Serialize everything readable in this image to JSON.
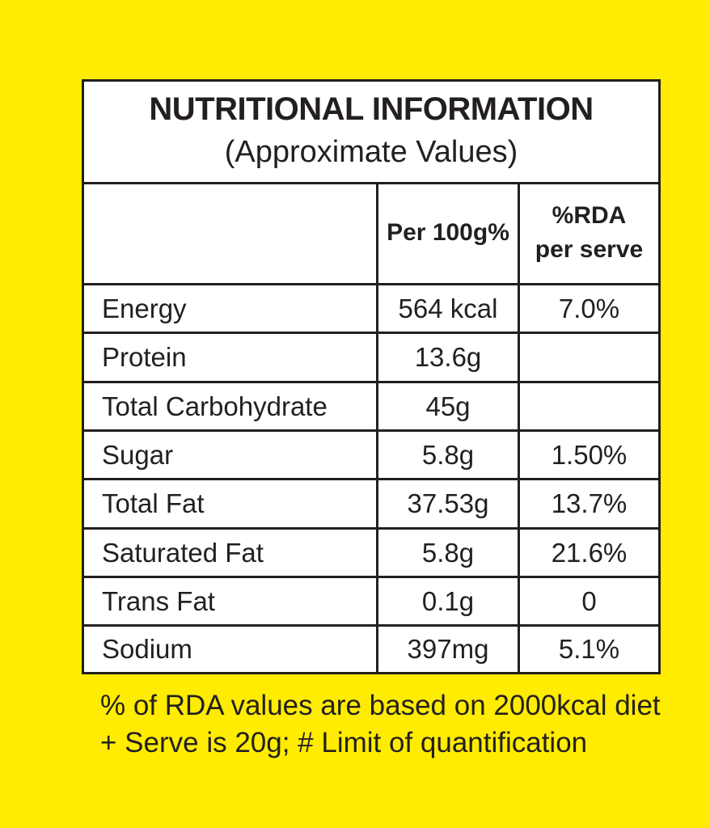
{
  "title": "NUTRITIONAL INFORMATION",
  "subtitle": "(Approximate Values)",
  "columns": {
    "blank": "",
    "per100g": "Per 100g%",
    "rda_line1": "%RDA",
    "rda_line2": "per serve"
  },
  "rows": [
    {
      "nutrient": "Energy",
      "per100g": "564 kcal",
      "rda": "7.0%"
    },
    {
      "nutrient": "Protein",
      "per100g": "13.6g",
      "rda": ""
    },
    {
      "nutrient": "Total Carbohydrate",
      "per100g": "45g",
      "rda": ""
    },
    {
      "nutrient": "Sugar",
      "per100g": "5.8g",
      "rda": "1.50%"
    },
    {
      "nutrient": "Total Fat",
      "per100g": "37.53g",
      "rda": "13.7%"
    },
    {
      "nutrient": "Saturated Fat",
      "per100g": "5.8g",
      "rda": "21.6%"
    },
    {
      "nutrient": "Trans Fat",
      "per100g": "0.1g",
      "rda": "0"
    },
    {
      "nutrient": "Sodium",
      "per100g": "397mg",
      "rda": "5.1%"
    }
  ],
  "footnotes": {
    "line1": "% of RDA values are based on 2000kcal diet",
    "line2": "+ Serve is 20g; # Limit of quantification"
  },
  "colors": {
    "background": "#ffec00",
    "panel": "#ffffff",
    "ink": "#231f20"
  }
}
